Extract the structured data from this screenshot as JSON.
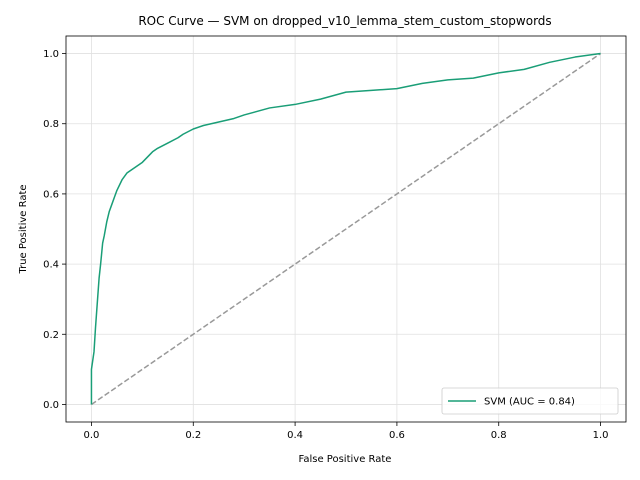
{
  "chart_data": {
    "type": "line",
    "title": "ROC Curve — SVM on dropped_v10_lemma_stem_custom_stopwords",
    "xlabel": "False Positive Rate",
    "ylabel": "True Positive Rate",
    "xlim": [
      -0.05,
      1.05
    ],
    "ylim": [
      -0.05,
      1.05
    ],
    "xticks": [
      0.0,
      0.2,
      0.4,
      0.6,
      0.8,
      1.0
    ],
    "yticks": [
      0.0,
      0.2,
      0.4,
      0.6,
      0.8,
      1.0
    ],
    "xtick_labels": [
      "0.0",
      "0.2",
      "0.4",
      "0.6",
      "0.8",
      "1.0"
    ],
    "ytick_labels": [
      "0.0",
      "0.2",
      "0.4",
      "0.6",
      "0.8",
      "1.0"
    ],
    "grid": true,
    "legend_position": "lower-right",
    "series": [
      {
        "name": "SVM (AUC = 0.84)",
        "color": "#1a9e77",
        "style": "solid",
        "x": [
          0.0,
          0.0,
          0.005,
          0.008,
          0.012,
          0.015,
          0.018,
          0.02,
          0.022,
          0.025,
          0.03,
          0.035,
          0.04,
          0.045,
          0.05,
          0.06,
          0.07,
          0.08,
          0.09,
          0.1,
          0.12,
          0.13,
          0.15,
          0.17,
          0.18,
          0.2,
          0.22,
          0.25,
          0.28,
          0.3,
          0.35,
          0.4,
          0.45,
          0.5,
          0.55,
          0.6,
          0.65,
          0.7,
          0.75,
          0.8,
          0.85,
          0.9,
          0.95,
          1.0
        ],
        "y": [
          0.0,
          0.1,
          0.15,
          0.22,
          0.3,
          0.36,
          0.4,
          0.43,
          0.46,
          0.48,
          0.52,
          0.55,
          0.57,
          0.59,
          0.61,
          0.64,
          0.66,
          0.67,
          0.68,
          0.69,
          0.72,
          0.73,
          0.745,
          0.76,
          0.77,
          0.785,
          0.795,
          0.805,
          0.815,
          0.825,
          0.845,
          0.855,
          0.87,
          0.89,
          0.895,
          0.9,
          0.915,
          0.925,
          0.93,
          0.945,
          0.955,
          0.975,
          0.99,
          1.0
        ]
      },
      {
        "name": "",
        "color": "#999999",
        "style": "dashed",
        "x": [
          0.0,
          1.0
        ],
        "y": [
          0.0,
          1.0
        ]
      }
    ],
    "legend": [
      {
        "label": "SVM (AUC = 0.84)",
        "color": "#1a9e77"
      }
    ]
  }
}
